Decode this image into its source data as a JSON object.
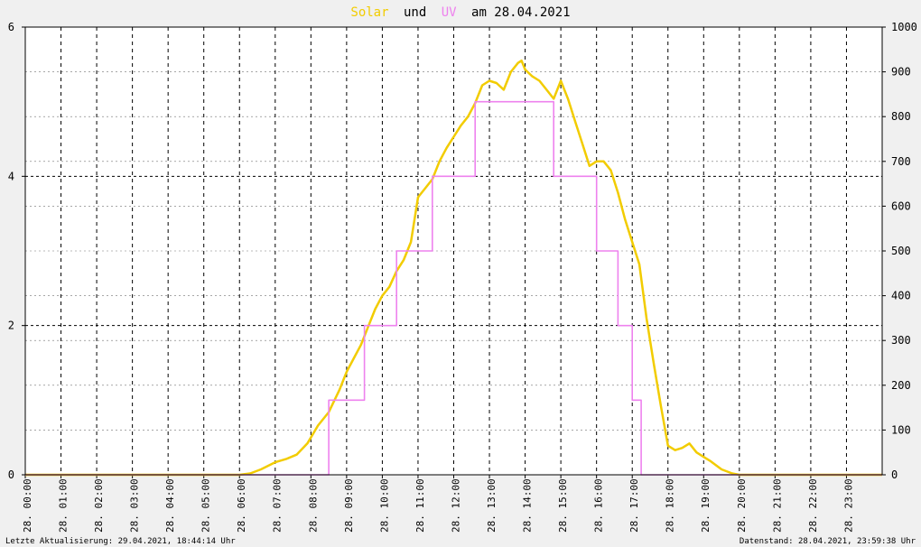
{
  "title": {
    "part1": "Solar",
    "part2": "und",
    "part3": "UV",
    "part4": "am 28.04.2021"
  },
  "footer": {
    "left": "Letzte Aktualisierung: 29.04.2021, 18:44:14 Uhr",
    "right": "Datenstand: 28.04.2021, 23:59:38 Uhr"
  },
  "colors": {
    "solar": "#f2cc00",
    "uv": "#ee82ee",
    "uv_low": "#f49a7a",
    "title_solar": "#f2cc00",
    "title_uv": "#ee82ee",
    "grid": "#000000",
    "bg": "#f0f0f0",
    "plot_bg": "#ffffff"
  },
  "chart_data": {
    "type": "line",
    "left_axis": {
      "min": 0,
      "max": 6,
      "ticks": [
        0,
        2,
        4,
        6
      ],
      "series": "UV"
    },
    "right_axis": {
      "min": 0,
      "max": 1000,
      "ticks": [
        0,
        100,
        200,
        300,
        400,
        500,
        600,
        700,
        800,
        900,
        1000
      ],
      "series": "Solar"
    },
    "x": {
      "min": 0,
      "max": 24,
      "unit": "hour",
      "tick_labels": [
        "28. 00:00",
        "28. 01:00",
        "28. 02:00",
        "28. 03:00",
        "28. 04:00",
        "28. 05:00",
        "28. 06:00",
        "28. 07:00",
        "28. 08:00",
        "28. 09:00",
        "28. 10:00",
        "28. 11:00",
        "28. 12:00",
        "28. 13:00",
        "28. 14:00",
        "28. 15:00",
        "28. 16:00",
        "28. 17:00",
        "28. 18:00",
        "28. 19:00",
        "28. 20:00",
        "28. 21:00",
        "28. 22:00",
        "28. 23:00"
      ]
    },
    "grid": true,
    "series": [
      {
        "name": "Solar",
        "axis": "right",
        "points": [
          [
            0,
            0
          ],
          [
            6.0,
            0
          ],
          [
            6.3,
            3
          ],
          [
            6.6,
            12
          ],
          [
            7.0,
            28
          ],
          [
            7.3,
            35
          ],
          [
            7.6,
            45
          ],
          [
            7.9,
            70
          ],
          [
            8.2,
            110
          ],
          [
            8.5,
            140
          ],
          [
            8.8,
            190
          ],
          [
            9.0,
            230
          ],
          [
            9.2,
            260
          ],
          [
            9.4,
            290
          ],
          [
            9.6,
            330
          ],
          [
            9.8,
            370
          ],
          [
            10.0,
            400
          ],
          [
            10.2,
            420
          ],
          [
            10.4,
            455
          ],
          [
            10.6,
            480
          ],
          [
            10.8,
            520
          ],
          [
            11.0,
            620
          ],
          [
            11.2,
            640
          ],
          [
            11.4,
            660
          ],
          [
            11.6,
            700
          ],
          [
            11.8,
            730
          ],
          [
            12.0,
            755
          ],
          [
            12.2,
            780
          ],
          [
            12.4,
            800
          ],
          [
            12.6,
            830
          ],
          [
            12.8,
            870
          ],
          [
            13.0,
            880
          ],
          [
            13.2,
            875
          ],
          [
            13.4,
            860
          ],
          [
            13.6,
            900
          ],
          [
            13.8,
            920
          ],
          [
            13.9,
            925
          ],
          [
            14.0,
            905
          ],
          [
            14.2,
            890
          ],
          [
            14.4,
            880
          ],
          [
            14.6,
            860
          ],
          [
            14.8,
            840
          ],
          [
            15.0,
            880
          ],
          [
            15.2,
            840
          ],
          [
            15.4,
            790
          ],
          [
            15.6,
            740
          ],
          [
            15.8,
            690
          ],
          [
            16.0,
            700
          ],
          [
            16.2,
            700
          ],
          [
            16.4,
            680
          ],
          [
            16.6,
            630
          ],
          [
            16.8,
            570
          ],
          [
            17.0,
            520
          ],
          [
            17.2,
            470
          ],
          [
            17.4,
            350
          ],
          [
            17.6,
            250
          ],
          [
            17.8,
            155
          ],
          [
            18.0,
            65
          ],
          [
            18.2,
            55
          ],
          [
            18.4,
            60
          ],
          [
            18.6,
            70
          ],
          [
            18.8,
            50
          ],
          [
            19.0,
            40
          ],
          [
            19.2,
            30
          ],
          [
            19.5,
            12
          ],
          [
            19.8,
            3
          ],
          [
            20.0,
            0
          ],
          [
            24,
            0
          ]
        ]
      },
      {
        "name": "UV",
        "axis": "left",
        "points": [
          [
            0,
            0
          ],
          [
            8.5,
            0
          ],
          [
            8.5,
            1
          ],
          [
            9.5,
            1
          ],
          [
            9.5,
            2
          ],
          [
            10.4,
            2
          ],
          [
            10.4,
            3
          ],
          [
            11.4,
            3
          ],
          [
            11.4,
            4
          ],
          [
            12.6,
            4
          ],
          [
            12.6,
            5
          ],
          [
            14.8,
            5
          ],
          [
            14.8,
            4
          ],
          [
            16.0,
            4
          ],
          [
            16.0,
            3
          ],
          [
            16.6,
            3
          ],
          [
            16.6,
            2
          ],
          [
            17.0,
            2
          ],
          [
            17.0,
            1
          ],
          [
            17.25,
            1
          ],
          [
            17.25,
            0
          ],
          [
            24,
            0
          ]
        ]
      }
    ]
  }
}
